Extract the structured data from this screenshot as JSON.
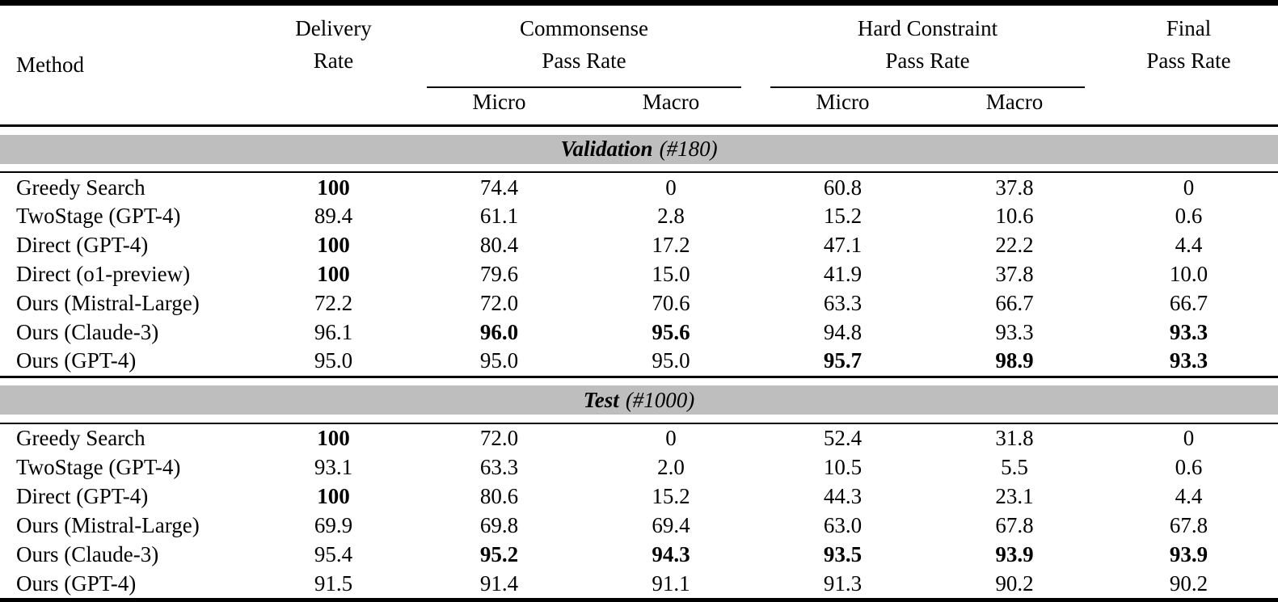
{
  "colors": {
    "band_bg": "#BEBEBE",
    "rule": "#000000",
    "text": "#000000",
    "background": "#FFFFFF"
  },
  "table": {
    "header": {
      "method": "Method",
      "delivery": "Delivery\nRate",
      "commonsense": "Commonsense\nPass Rate",
      "hard_constraint": "Hard Constraint\nPass Rate",
      "final": "Final\nPass Rate",
      "micro": "Micro",
      "macro": "Macro"
    },
    "sections": [
      {
        "title": "Validation",
        "count": "(#180)",
        "rows": [
          {
            "method": "Greedy Search",
            "values": [
              "100",
              "74.4",
              "0",
              "60.8",
              "37.8",
              "0"
            ],
            "bold": [
              true,
              false,
              false,
              false,
              false,
              false
            ]
          },
          {
            "method": "TwoStage (GPT-4)",
            "values": [
              "89.4",
              "61.1",
              "2.8",
              "15.2",
              "10.6",
              "0.6"
            ],
            "bold": [
              false,
              false,
              false,
              false,
              false,
              false
            ]
          },
          {
            "method": "Direct (GPT-4)",
            "values": [
              "100",
              "80.4",
              "17.2",
              "47.1",
              "22.2",
              "4.4"
            ],
            "bold": [
              true,
              false,
              false,
              false,
              false,
              false
            ]
          },
          {
            "method": "Direct (o1-preview)",
            "values": [
              "100",
              "79.6",
              "15.0",
              "41.9",
              "37.8",
              "10.0"
            ],
            "bold": [
              true,
              false,
              false,
              false,
              false,
              false
            ]
          },
          {
            "method": "Ours (Mistral-Large)",
            "values": [
              "72.2",
              "72.0",
              "70.6",
              "63.3",
              "66.7",
              "66.7"
            ],
            "bold": [
              false,
              false,
              false,
              false,
              false,
              false
            ]
          },
          {
            "method": "Ours (Claude-3)",
            "values": [
              "96.1",
              "96.0",
              "95.6",
              "94.8",
              "93.3",
              "93.3"
            ],
            "bold": [
              false,
              true,
              true,
              false,
              false,
              true
            ]
          },
          {
            "method": "Ours (GPT-4)",
            "values": [
              "95.0",
              "95.0",
              "95.0",
              "95.7",
              "98.9",
              "93.3"
            ],
            "bold": [
              false,
              false,
              false,
              true,
              true,
              true
            ]
          }
        ]
      },
      {
        "title": "Test",
        "count": "(#1000)",
        "rows": [
          {
            "method": "Greedy Search",
            "values": [
              "100",
              "72.0",
              "0",
              "52.4",
              "31.8",
              "0"
            ],
            "bold": [
              true,
              false,
              false,
              false,
              false,
              false
            ]
          },
          {
            "method": "TwoStage (GPT-4)",
            "values": [
              "93.1",
              "63.3",
              "2.0",
              "10.5",
              "5.5",
              "0.6"
            ],
            "bold": [
              false,
              false,
              false,
              false,
              false,
              false
            ]
          },
          {
            "method": "Direct (GPT-4)",
            "values": [
              "100",
              "80.6",
              "15.2",
              "44.3",
              "23.1",
              "4.4"
            ],
            "bold": [
              true,
              false,
              false,
              false,
              false,
              false
            ]
          },
          {
            "method": "Ours (Mistral-Large)",
            "values": [
              "69.9",
              "69.8",
              "69.4",
              "63.0",
              "67.8",
              "67.8"
            ],
            "bold": [
              false,
              false,
              false,
              false,
              false,
              false
            ]
          },
          {
            "method": "Ours (Claude-3)",
            "values": [
              "95.4",
              "95.2",
              "94.3",
              "93.5",
              "93.9",
              "93.9"
            ],
            "bold": [
              false,
              true,
              true,
              true,
              true,
              true
            ]
          },
          {
            "method": "Ours (GPT-4)",
            "values": [
              "91.5",
              "91.4",
              "91.1",
              "91.3",
              "90.2",
              "90.2"
            ],
            "bold": [
              false,
              false,
              false,
              false,
              false,
              false
            ]
          }
        ]
      }
    ]
  }
}
